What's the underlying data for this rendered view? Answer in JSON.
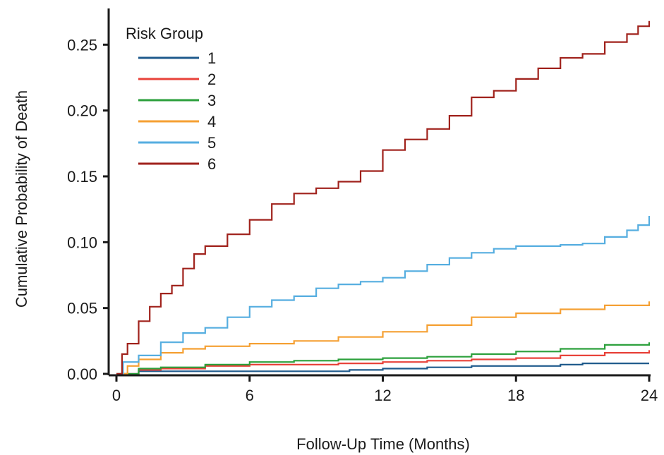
{
  "chart_data": {
    "type": "line",
    "step": true,
    "xlabel": "Follow-Up Time (Months)",
    "ylabel": "Cumulative Probability of Death",
    "xlim": [
      0,
      24
    ],
    "ylim": [
      0,
      0.27
    ],
    "xticks": [
      0,
      6,
      12,
      18,
      24
    ],
    "xtick_labels": [
      "0",
      "6",
      "12",
      "18",
      "24"
    ],
    "yticks": [
      0,
      0.05,
      0.1,
      0.15,
      0.2,
      0.25
    ],
    "ytick_labels": [
      "0.00",
      "0.05",
      "0.10",
      "0.15",
      "0.20",
      "0.25"
    ],
    "grid": false,
    "legend": {
      "title": "Risk Group",
      "position": "top-left"
    },
    "series": [
      {
        "name": "1",
        "color": "#1f5a8c",
        "x": [
          0,
          1,
          6,
          8,
          10.5,
          12,
          14,
          16,
          18,
          20,
          21,
          22,
          24
        ],
        "y": [
          0,
          0.002,
          0.002,
          0.002,
          0.003,
          0.004,
          0.005,
          0.006,
          0.006,
          0.007,
          0.008,
          0.008,
          0.008
        ]
      },
      {
        "name": "2",
        "color": "#e8423a",
        "x": [
          0,
          1,
          2,
          4,
          6,
          8,
          10,
          12,
          14,
          16,
          18,
          20,
          22,
          24
        ],
        "y": [
          0,
          0.003,
          0.004,
          0.006,
          0.007,
          0.007,
          0.008,
          0.009,
          0.01,
          0.011,
          0.012,
          0.014,
          0.016,
          0.018
        ]
      },
      {
        "name": "3",
        "color": "#2ca03c",
        "x": [
          0,
          1,
          2,
          4,
          6,
          8,
          10,
          12,
          14,
          16,
          18,
          20,
          22,
          24
        ],
        "y": [
          0,
          0.004,
          0.005,
          0.007,
          0.009,
          0.01,
          0.011,
          0.012,
          0.013,
          0.015,
          0.017,
          0.019,
          0.022,
          0.024
        ]
      },
      {
        "name": "4",
        "color": "#f5a033",
        "x": [
          0,
          0.5,
          1,
          2,
          3,
          4,
          6,
          8,
          10,
          12,
          14,
          16,
          18,
          20,
          22,
          24
        ],
        "y": [
          0,
          0.006,
          0.011,
          0.016,
          0.019,
          0.021,
          0.023,
          0.025,
          0.028,
          0.032,
          0.037,
          0.043,
          0.046,
          0.049,
          0.052,
          0.055
        ]
      },
      {
        "name": "5",
        "color": "#56aee0",
        "x": [
          0,
          0.3,
          1,
          2,
          3,
          4,
          5,
          6,
          7,
          8,
          9,
          10,
          11,
          12,
          13,
          14,
          15,
          16,
          17,
          18,
          19,
          20,
          21,
          22,
          23,
          23.5,
          24
        ],
        "y": [
          0,
          0.009,
          0.014,
          0.024,
          0.031,
          0.035,
          0.043,
          0.051,
          0.056,
          0.059,
          0.065,
          0.068,
          0.07,
          0.073,
          0.078,
          0.083,
          0.088,
          0.092,
          0.095,
          0.097,
          0.097,
          0.098,
          0.099,
          0.104,
          0.109,
          0.113,
          0.12
        ]
      },
      {
        "name": "6",
        "color": "#a0221c",
        "x": [
          0,
          0.25,
          0.5,
          1,
          1.5,
          2,
          2.5,
          3,
          3.5,
          4,
          5,
          6,
          7,
          8,
          9,
          10,
          11,
          12,
          13,
          14,
          15,
          16,
          17,
          18,
          19,
          20,
          21,
          22,
          23,
          23.5,
          24
        ],
        "y": [
          0,
          0.015,
          0.023,
          0.04,
          0.051,
          0.061,
          0.067,
          0.08,
          0.091,
          0.097,
          0.106,
          0.117,
          0.129,
          0.137,
          0.141,
          0.146,
          0.154,
          0.17,
          0.178,
          0.186,
          0.196,
          0.21,
          0.215,
          0.224,
          0.232,
          0.24,
          0.243,
          0.252,
          0.258,
          0.264,
          0.268
        ]
      }
    ]
  }
}
